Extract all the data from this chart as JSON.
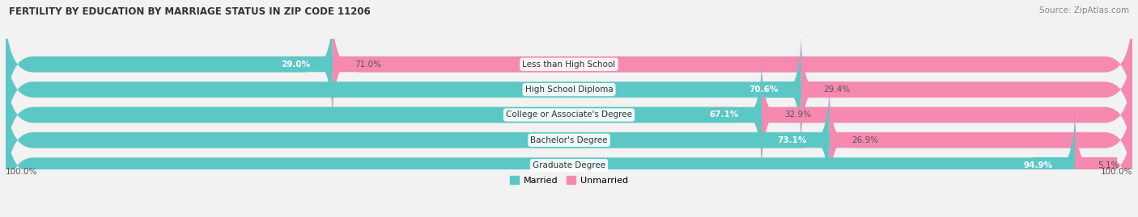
{
  "title": "FERTILITY BY EDUCATION BY MARRIAGE STATUS IN ZIP CODE 11206",
  "source": "Source: ZipAtlas.com",
  "categories": [
    "Less than High School",
    "High School Diploma",
    "College or Associate's Degree",
    "Bachelor's Degree",
    "Graduate Degree"
  ],
  "married": [
    29.0,
    70.6,
    67.1,
    73.1,
    94.9
  ],
  "unmarried": [
    71.0,
    29.4,
    32.9,
    26.9,
    5.1
  ],
  "married_color": "#5bc8c5",
  "unmarried_color": "#f589b0",
  "bar_height": 0.62,
  "background_color": "#f2f2f2",
  "bar_bg_color": "#e8e8e8",
  "figsize": [
    14.06,
    2.69
  ],
  "dpi": 100,
  "title_fontsize": 8.5,
  "source_fontsize": 7.5,
  "label_fontsize": 7.5,
  "value_fontsize": 7.5
}
